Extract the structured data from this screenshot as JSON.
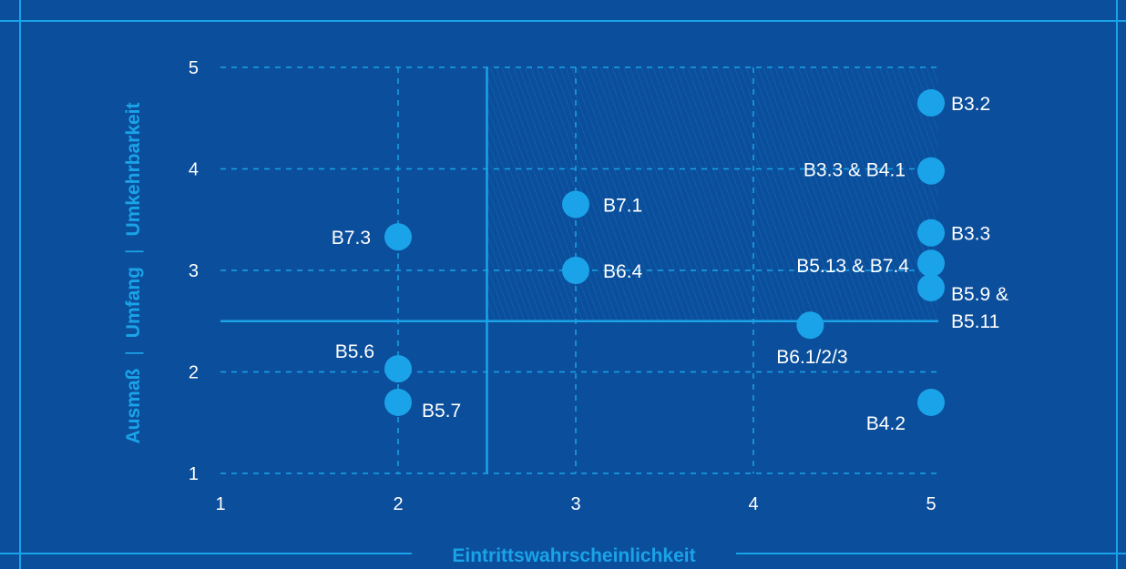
{
  "chart_data": {
    "type": "scatter",
    "xlabel": "Eintrittswahrscheinlichkeit",
    "ylabel_parts": [
      "Ausmaß",
      "|",
      "Umfang",
      "|",
      "Umkehrbarkeit"
    ],
    "xlim": [
      1,
      5
    ],
    "ylim": [
      1,
      5
    ],
    "xticks": [
      1,
      2,
      3,
      4,
      5
    ],
    "yticks": [
      1,
      2,
      3,
      4,
      5
    ],
    "grid": true,
    "threshold": {
      "x": 2.5,
      "y": 2.5
    },
    "points": [
      {
        "label": "B3.2",
        "x": 5,
        "y": 4.65
      },
      {
        "label": "B3.3 & B4.1",
        "x": 5,
        "y": 3.98
      },
      {
        "label": "B7.1",
        "x": 3,
        "y": 3.65
      },
      {
        "label": "B7.3",
        "x": 2,
        "y": 3.33
      },
      {
        "label": "B3.3",
        "x": 5,
        "y": 3.37
      },
      {
        "label": "B5.13 & B7.4",
        "x": 5,
        "y": 3.07
      },
      {
        "label": "B6.4",
        "x": 3,
        "y": 3.0
      },
      {
        "label": "B5.9 &",
        "label2": "B5.11",
        "x": 5,
        "y": 2.83
      },
      {
        "label": "B6.1/2/3",
        "x": 4.32,
        "y": 2.46
      },
      {
        "label": "B5.6",
        "x": 2,
        "y": 2.03
      },
      {
        "label": "B5.7",
        "x": 2,
        "y": 1.7
      },
      {
        "label": "B4.2",
        "x": 5,
        "y": 1.7
      }
    ]
  },
  "colors": {
    "background": "#0b4e9b",
    "accent": "#1aa3e8",
    "text": "#ffffff"
  }
}
